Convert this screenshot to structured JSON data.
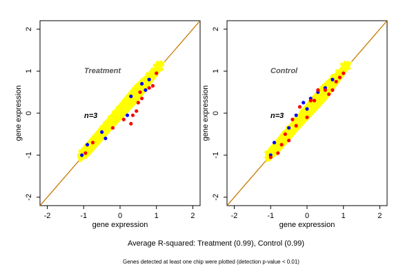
{
  "chart_data": [
    {
      "type": "scatter",
      "title": "Treatment",
      "annotation": "n=3",
      "xlabel": "gene expression",
      "ylabel": "gene expression",
      "xlim": [
        -2.2,
        2.2
      ],
      "ylim": [
        -2.2,
        2.2
      ],
      "xticks": [
        "-2",
        "-1",
        "0",
        "1",
        "2"
      ],
      "yticks": [
        "-2",
        "-1",
        "0",
        "1",
        "2"
      ],
      "grid": false,
      "reference_line": {
        "slope": 1,
        "intercept": 0,
        "color": "#c87800"
      },
      "series": [
        {
          "color": "#ffff00",
          "points": [
            [
              -1.1,
              -1.1
            ],
            [
              -1.0,
              -0.95
            ],
            [
              -0.9,
              -0.85
            ],
            [
              -0.8,
              -0.7
            ],
            [
              -0.6,
              -0.55
            ],
            [
              -0.4,
              -0.35
            ],
            [
              -0.2,
              -0.15
            ],
            [
              0.0,
              0.05
            ],
            [
              0.2,
              0.25
            ],
            [
              0.4,
              0.45
            ],
            [
              0.6,
              0.65
            ],
            [
              0.8,
              0.85
            ],
            [
              1.0,
              1.05
            ],
            [
              1.15,
              1.15
            ]
          ]
        },
        {
          "color": "#0000ff",
          "points": [
            [
              -1.05,
              -1.0
            ],
            [
              -0.9,
              -0.75
            ],
            [
              -0.5,
              -0.45
            ],
            [
              -0.4,
              -0.6
            ],
            [
              0.2,
              -0.05
            ],
            [
              0.3,
              0.4
            ],
            [
              0.6,
              0.7
            ],
            [
              0.7,
              0.55
            ],
            [
              0.8,
              0.8
            ]
          ]
        },
        {
          "color": "#ff0000",
          "points": [
            [
              -0.95,
              -0.95
            ],
            [
              -0.75,
              -0.7
            ],
            [
              -0.2,
              -0.35
            ],
            [
              0.1,
              -0.15
            ],
            [
              0.3,
              -0.25
            ],
            [
              0.35,
              -0.05
            ],
            [
              0.45,
              0.05
            ],
            [
              0.5,
              0.25
            ],
            [
              0.55,
              0.5
            ],
            [
              0.6,
              0.35
            ],
            [
              0.8,
              0.6
            ],
            [
              0.9,
              0.65
            ],
            [
              1.0,
              0.95
            ]
          ]
        }
      ]
    },
    {
      "type": "scatter",
      "title": "Control",
      "annotation": "n=3",
      "xlabel": "gene expression",
      "ylabel": "gene expression",
      "xlim": [
        -2.2,
        2.2
      ],
      "ylim": [
        -2.2,
        2.2
      ],
      "xticks": [
        "-2",
        "-1",
        "0",
        "1",
        "2"
      ],
      "yticks": [
        "-2",
        "-1",
        "0",
        "1",
        "2"
      ],
      "grid": false,
      "reference_line": {
        "slope": 1,
        "intercept": 0,
        "color": "#c87800"
      },
      "series": [
        {
          "color": "#ffff00",
          "points": [
            [
              -1.1,
              -1.05
            ],
            [
              -0.95,
              -0.9
            ],
            [
              -0.8,
              -0.75
            ],
            [
              -0.6,
              -0.55
            ],
            [
              -0.4,
              -0.35
            ],
            [
              -0.2,
              -0.15
            ],
            [
              0.0,
              0.05
            ],
            [
              0.2,
              0.25
            ],
            [
              0.4,
              0.45
            ],
            [
              0.6,
              0.65
            ],
            [
              0.8,
              0.8
            ],
            [
              1.0,
              1.0
            ],
            [
              1.15,
              1.15
            ]
          ]
        },
        {
          "color": "#0000ff",
          "points": [
            [
              -1.0,
              -1.0
            ],
            [
              -0.9,
              -0.7
            ],
            [
              -0.5,
              -0.35
            ],
            [
              -0.3,
              -0.05
            ],
            [
              0.0,
              0.1
            ],
            [
              0.1,
              0.35
            ],
            [
              0.3,
              0.5
            ],
            [
              0.5,
              0.6
            ],
            [
              0.7,
              0.8
            ],
            [
              -0.1,
              0.25
            ]
          ]
        },
        {
          "color": "#ff0000",
          "points": [
            [
              -1.0,
              -1.05
            ],
            [
              -0.8,
              -0.95
            ],
            [
              -0.7,
              -0.75
            ],
            [
              -0.6,
              -0.5
            ],
            [
              -0.5,
              -0.65
            ],
            [
              -0.4,
              -0.15
            ],
            [
              -0.3,
              -0.3
            ],
            [
              -0.2,
              0.15
            ],
            [
              0.0,
              -0.1
            ],
            [
              0.1,
              0.3
            ],
            [
              0.2,
              0.3
            ],
            [
              0.3,
              0.55
            ],
            [
              0.5,
              0.55
            ],
            [
              0.6,
              0.45
            ],
            [
              0.7,
              0.55
            ],
            [
              0.8,
              0.75
            ],
            [
              0.9,
              0.85
            ],
            [
              1.0,
              0.95
            ]
          ]
        }
      ]
    }
  ],
  "figure_text": {
    "summary": "Average R-squared: Treatment (0.99), Control (0.99)",
    "footnote": "Genes detected at least one chip were plotted (detection p-value < 0.01)"
  }
}
